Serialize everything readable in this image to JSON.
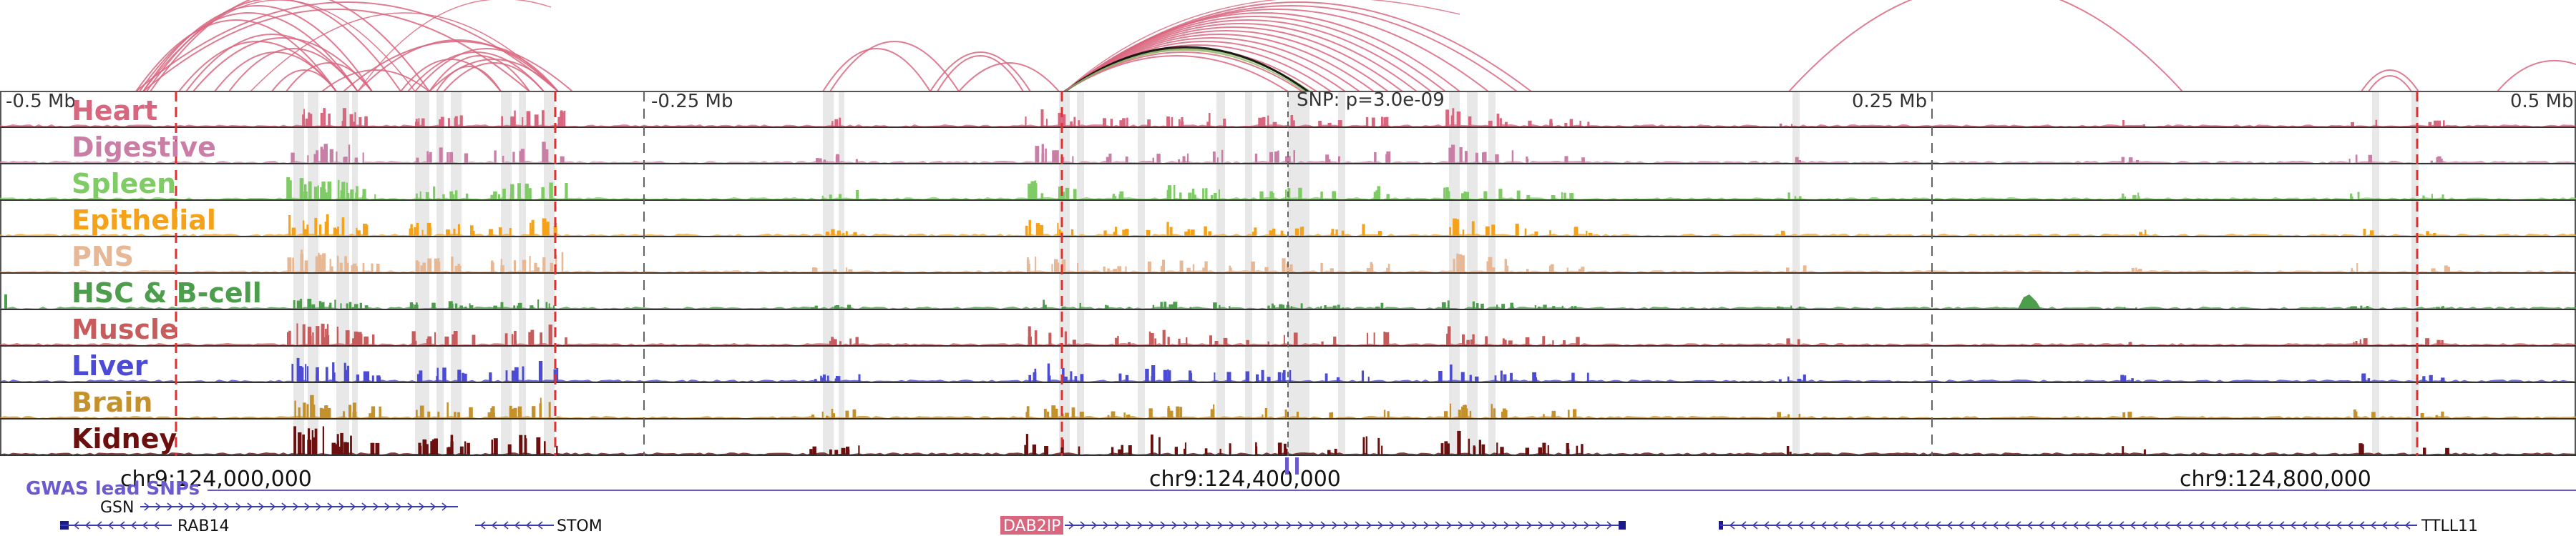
{
  "axis_ticks": [
    {
      "label": "-0.5 Mb",
      "pos": 0.0
    },
    {
      "label": "-0.25 Mb",
      "pos": 0.25
    },
    {
      "label": "0.25 Mb",
      "pos": 0.75
    },
    {
      "label": "0.5 Mb",
      "pos": 1.0
    }
  ],
  "snp_label": "SNP: p=3.0e-09",
  "tracks": [
    {
      "name": "Heart",
      "color": "#d9667f"
    },
    {
      "name": "Digestive",
      "color": "#c97fa5"
    },
    {
      "name": "Spleen",
      "color": "#7fcc66"
    },
    {
      "name": "Epithelial",
      "color": "#f5a21a"
    },
    {
      "name": "PNS",
      "color": "#e6b896"
    },
    {
      "name": "HSC & B-cell",
      "color": "#4c9e4c"
    },
    {
      "name": "Muscle",
      "color": "#c85c5c"
    },
    {
      "name": "Liver",
      "color": "#4b4bd6"
    },
    {
      "name": "Brain",
      "color": "#c4912a"
    },
    {
      "name": "Kidney",
      "color": "#6b0f0f"
    }
  ],
  "coordinates": [
    "chr9:124,000,000",
    "chr9:124,400,000",
    "chr9:124,800,000"
  ],
  "gwas_label": "GWAS lead SNPs",
  "genes": [
    {
      "name": "GSN",
      "strand": "+"
    },
    {
      "name": "RAB14",
      "strand": "-"
    },
    {
      "name": "STOM",
      "strand": "-"
    },
    {
      "name": "DAB2IP",
      "strand": "+",
      "highlight": "#d9667f"
    },
    {
      "name": "TTLL11",
      "strand": "-"
    }
  ],
  "colors": {
    "loop": "#d9667f",
    "loop_highlight_1": "#000000",
    "loop_highlight_2": "#8fb86c",
    "credible_set_line": "#e03030",
    "peak_shade": "#d8d8d8"
  }
}
